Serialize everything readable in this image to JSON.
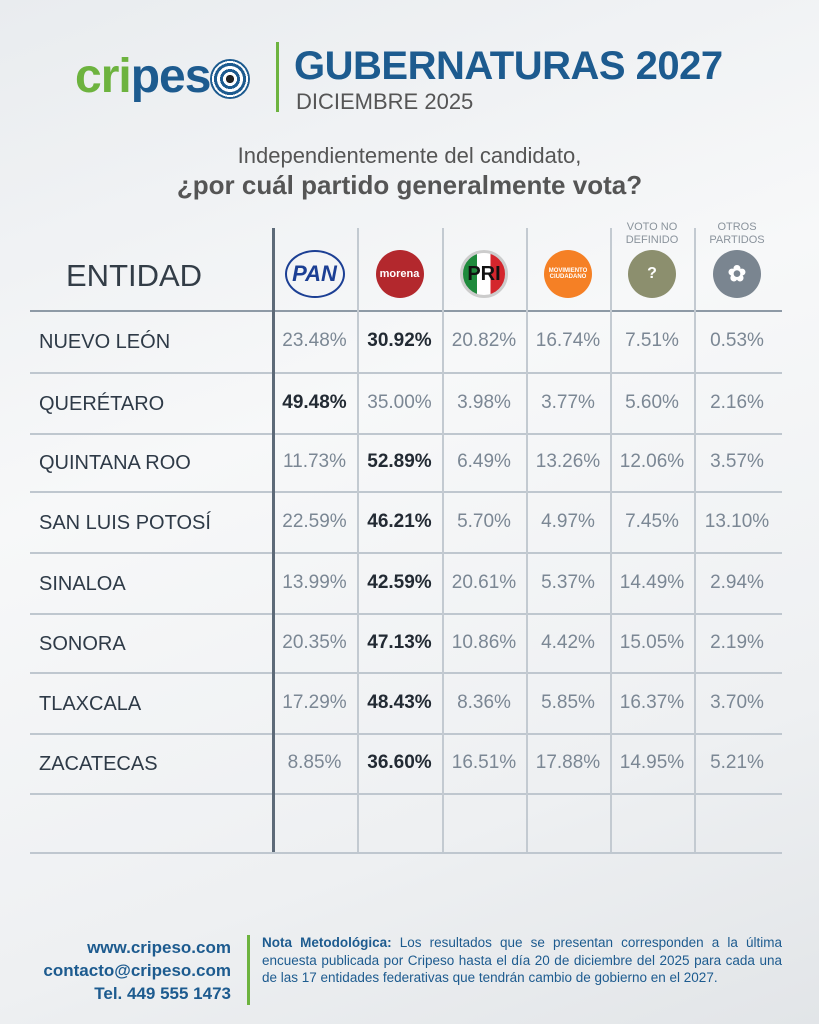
{
  "header": {
    "logo_text": "cripeso",
    "title": "GUBERNATURAS 2027",
    "subtitle": "DICIEMBRE 2025"
  },
  "question": {
    "line1": "Independientemente del candidato,",
    "line2": "¿por cuál partido generalmente vota?"
  },
  "table": {
    "entity_header": "ENTIDAD",
    "columns": [
      {
        "name": "PAN",
        "icon": "pan-logo",
        "color": "#1c3f94"
      },
      {
        "name": "morena",
        "icon": "morena-logo",
        "color": "#b3282d"
      },
      {
        "name": "PRI",
        "icon": "pri-logo",
        "color": "#e0e0e0"
      },
      {
        "name": "MOVIMIENTO CIUDADANO",
        "icon": "mc-logo",
        "color": "#f58025"
      },
      {
        "name": "",
        "label": "VOTO NO DEFINIDO",
        "icon": "ballot-box-icon",
        "color": "#8c8f6e"
      },
      {
        "name": "",
        "label": "OTROS PARTIDOS",
        "icon": "other-parties-icon",
        "color": "#7a8590"
      }
    ],
    "rows": [
      {
        "entity": "NUEVO LEÓN",
        "values": [
          "23.48%",
          "30.92%",
          "20.82%",
          "16.74%",
          "7.51%",
          "0.53%"
        ],
        "winner": 1
      },
      {
        "entity": "QUERÉTARO",
        "values": [
          "49.48%",
          "35.00%",
          "3.98%",
          "3.77%",
          "5.60%",
          "2.16%"
        ],
        "winner": 0
      },
      {
        "entity": "QUINTANA ROO",
        "values": [
          "11.73%",
          "52.89%",
          "6.49%",
          "13.26%",
          "12.06%",
          "3.57%"
        ],
        "winner": 1
      },
      {
        "entity": "SAN LUIS POTOSÍ",
        "values": [
          "22.59%",
          "46.21%",
          "5.70%",
          "4.97%",
          "7.45%",
          "13.10%"
        ],
        "winner": 1
      },
      {
        "entity": "SINALOA",
        "values": [
          "13.99%",
          "42.59%",
          "20.61%",
          "5.37%",
          "14.49%",
          "2.94%"
        ],
        "winner": 1
      },
      {
        "entity": "SONORA",
        "values": [
          "20.35%",
          "47.13%",
          "10.86%",
          "4.42%",
          "15.05%",
          "2.19%"
        ],
        "winner": 1
      },
      {
        "entity": "TLAXCALA",
        "values": [
          "17.29%",
          "48.43%",
          "8.36%",
          "5.85%",
          "16.37%",
          "3.70%"
        ],
        "winner": 1
      },
      {
        "entity": "ZACATECAS",
        "values": [
          "8.85%",
          "36.60%",
          "16.51%",
          "17.88%",
          "14.95%",
          "5.21%"
        ],
        "winner": 1
      }
    ]
  },
  "footer": {
    "website": "www.cripeso.com",
    "email": "contacto@cripeso.com",
    "phone": "Tel. 449 555 1473",
    "note_label": "Nota Metodológica:",
    "note_text": " Los resultados que se presentan corresponden a la última encuesta publicada por Cripeso hasta el día 20 de diciembre del 2025 para cada una de las 17 entidades federativas que tendrán cambio de gobierno en el 2027."
  }
}
